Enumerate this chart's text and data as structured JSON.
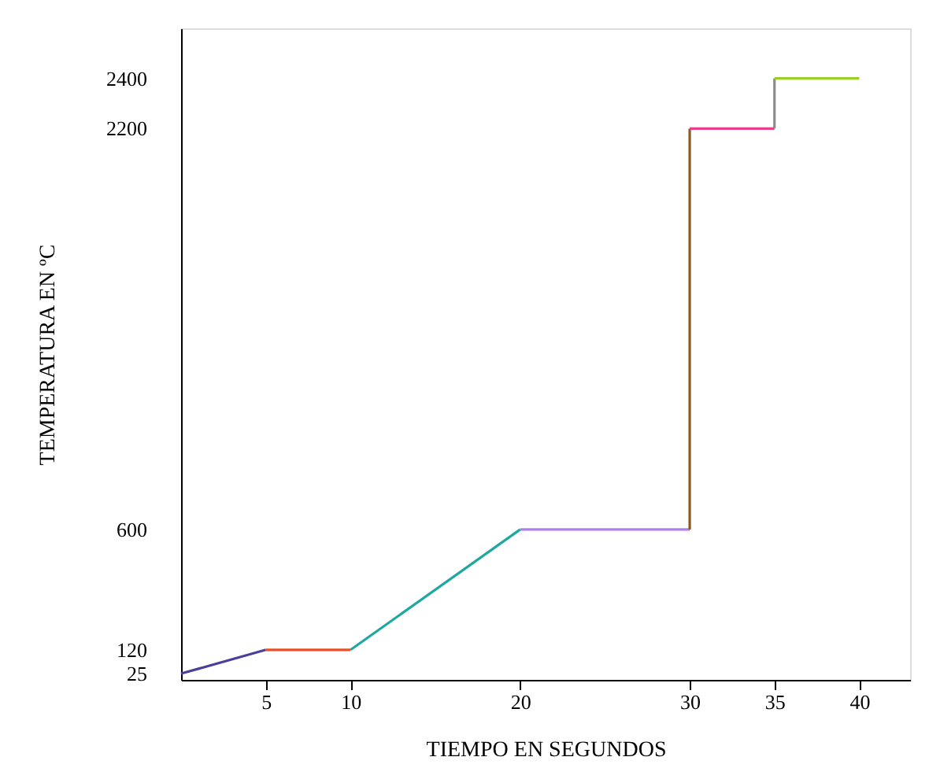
{
  "chart_data": {
    "type": "line",
    "xlabel": "TIEMPO EN SEGUNDOS",
    "ylabel": "TEMPERATURA EN ºC",
    "xlim": [
      0,
      43
    ],
    "xticks": [
      5,
      10,
      20,
      30,
      35,
      40
    ],
    "ylim": [
      0,
      2600
    ],
    "yticks": [
      25,
      120,
      600,
      2200,
      2400
    ],
    "grid": false,
    "marker": "none",
    "line_style": "solid",
    "series": [
      {
        "color": "#4b3f9e",
        "x": [
          0,
          5
        ],
        "values": [
          25,
          120
        ]
      },
      {
        "color": "#e8502a",
        "x": [
          5,
          10
        ],
        "values": [
          120,
          120
        ]
      },
      {
        "color": "#1ea8a0",
        "x": [
          10,
          20
        ],
        "values": [
          120,
          600
        ]
      },
      {
        "color": "#b07ef0",
        "x": [
          20,
          30
        ],
        "values": [
          600,
          600
        ]
      },
      {
        "color": "#8a5a1e",
        "x": [
          30,
          30
        ],
        "values": [
          600,
          2200
        ]
      },
      {
        "color": "#e8408a",
        "x": [
          30,
          35
        ],
        "values": [
          2200,
          2200
        ]
      },
      {
        "color": "#8c8c8c",
        "x": [
          35,
          35
        ],
        "values": [
          2200,
          2400
        ]
      },
      {
        "color": "#9ccc2a",
        "x": [
          35,
          40
        ],
        "values": [
          2400,
          2400
        ]
      }
    ]
  }
}
